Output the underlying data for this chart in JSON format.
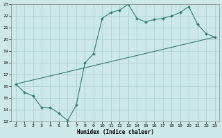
{
  "xlabel": "Humidex (Indice chaleur)",
  "xlim": [
    -0.5,
    23.5
  ],
  "ylim": [
    13,
    23
  ],
  "xticks": [
    0,
    1,
    2,
    3,
    4,
    5,
    6,
    7,
    8,
    9,
    10,
    11,
    12,
    13,
    14,
    15,
    16,
    17,
    18,
    19,
    20,
    21,
    22,
    23
  ],
  "yticks": [
    13,
    14,
    15,
    16,
    17,
    18,
    19,
    20,
    21,
    22,
    23
  ],
  "bg_color": "#cce8e8",
  "grid_color": "#aacccc",
  "line_color": "#2d7d6e",
  "line1_x": [
    0,
    1,
    2,
    3,
    4,
    5,
    6,
    7,
    8,
    9,
    10,
    11,
    12,
    13,
    14,
    15,
    16,
    17,
    18,
    19,
    20,
    21,
    22,
    23
  ],
  "line1_y": [
    16.2,
    15.5,
    15.2,
    14.2,
    14.2,
    13.7,
    13.1,
    14.4,
    18.0,
    18.8,
    21.8,
    22.3,
    22.5,
    23.0,
    21.8,
    21.5,
    21.7,
    21.8,
    22.0,
    22.3,
    22.8,
    21.3,
    20.5,
    20.2
  ],
  "line2_x": [
    0,
    23
  ],
  "line2_y": [
    16.2,
    20.2
  ]
}
